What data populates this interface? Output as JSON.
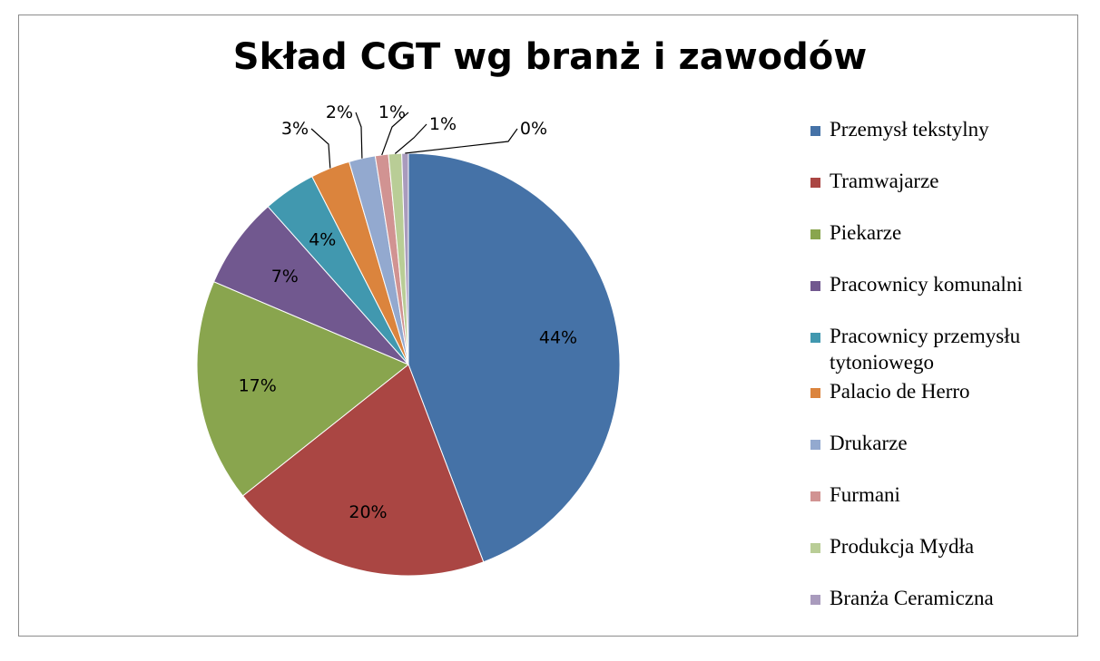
{
  "chart_data": {
    "type": "pie",
    "title": "Skład CGT wg branż i zawodów",
    "legend_position": "right",
    "slices": [
      {
        "name": "Przemysł tekstylny",
        "value": 44,
        "label": "44%",
        "color": "#4572A7"
      },
      {
        "name": "Tramwajarze",
        "value": 20,
        "label": "20%",
        "color": "#AA4643"
      },
      {
        "name": "Piekarze",
        "value": 17,
        "label": "17%",
        "color": "#89A54E"
      },
      {
        "name": "Pracownicy komunalni",
        "value": 7,
        "label": "7%",
        "color": "#71588F"
      },
      {
        "name": "Pracownicy przemysłu tytoniowego",
        "value": 4,
        "label": "4%",
        "color": "#4198AF"
      },
      {
        "name": "Palacio de Herro",
        "value": 3,
        "label": "3%",
        "color": "#DB843D"
      },
      {
        "name": "Drukarze",
        "value": 2,
        "label": "2%",
        "color": "#93A9CF"
      },
      {
        "name": "Furmani",
        "value": 1,
        "label": "1%",
        "color": "#D19392"
      },
      {
        "name": "Produkcja Mydła",
        "value": 1,
        "label": "1%",
        "color": "#B9CD96"
      },
      {
        "name": "Branża Ceramiczna",
        "value": 0.5,
        "label": "0%",
        "color": "#A99BBD"
      }
    ]
  }
}
